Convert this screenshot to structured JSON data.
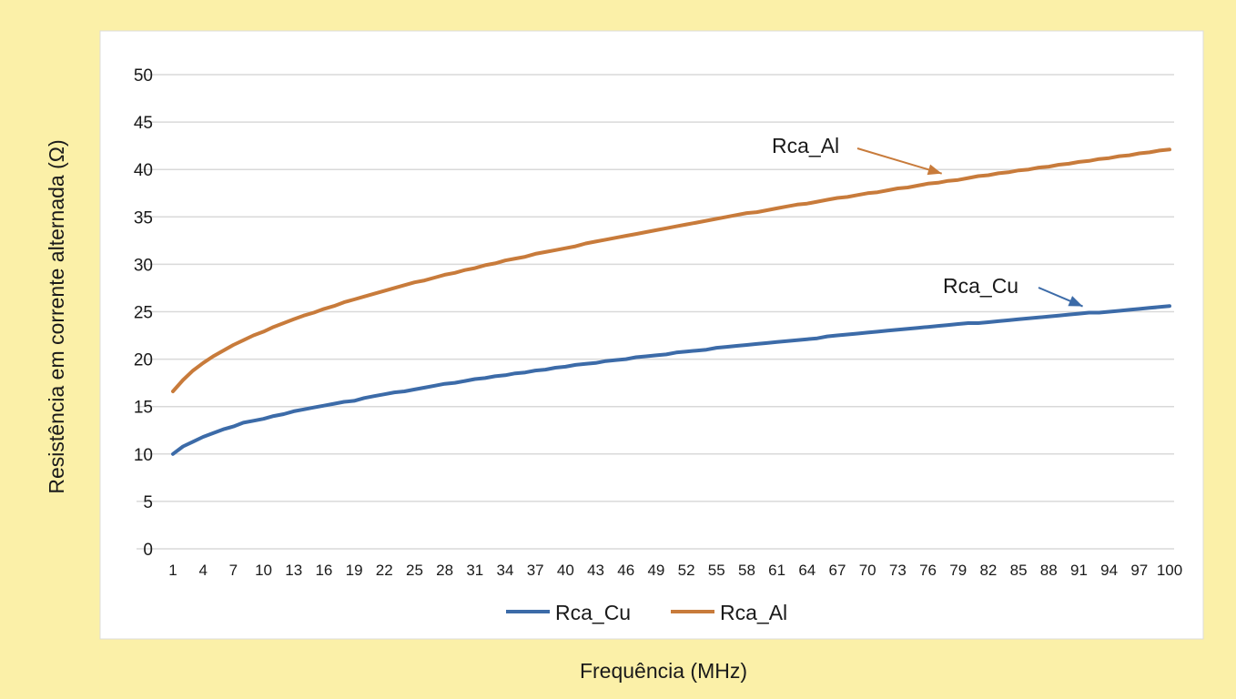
{
  "chart_data": {
    "type": "line",
    "title": "",
    "xlabel": "Frequência (MHz)",
    "ylabel": "Resistência em corrente alternada (Ω)",
    "x_start": 1,
    "x_end": 100,
    "x_tick_labels": [
      "1",
      "4",
      "7",
      "10",
      "13",
      "16",
      "19",
      "22",
      "25",
      "28",
      "31",
      "34",
      "37",
      "40",
      "43",
      "46",
      "49",
      "52",
      "55",
      "58",
      "61",
      "64",
      "67",
      "70",
      "73",
      "76",
      "79",
      "82",
      "85",
      "88",
      "91",
      "94",
      "97",
      "100"
    ],
    "ylim": [
      0,
      50
    ],
    "y_ticks": [
      0,
      5,
      10,
      15,
      20,
      25,
      30,
      35,
      40,
      45,
      50
    ],
    "grid": true,
    "legend_position": "bottom",
    "series": [
      {
        "name": "Rca_Cu",
        "color": "#3c6ba8",
        "values": [
          10.0,
          10.8,
          11.3,
          11.8,
          12.2,
          12.6,
          12.9,
          13.3,
          13.5,
          13.7,
          14.0,
          14.2,
          14.5,
          14.7,
          14.9,
          15.1,
          15.3,
          15.5,
          15.6,
          15.9,
          16.1,
          16.3,
          16.5,
          16.6,
          16.8,
          17.0,
          17.2,
          17.4,
          17.5,
          17.7,
          17.9,
          18.0,
          18.2,
          18.3,
          18.5,
          18.6,
          18.8,
          18.9,
          19.1,
          19.2,
          19.4,
          19.5,
          19.6,
          19.8,
          19.9,
          20.0,
          20.2,
          20.3,
          20.4,
          20.5,
          20.7,
          20.8,
          20.9,
          21.0,
          21.2,
          21.3,
          21.4,
          21.5,
          21.6,
          21.7,
          21.8,
          21.9,
          22.0,
          22.1,
          22.2,
          22.4,
          22.5,
          22.6,
          22.7,
          22.8,
          22.9,
          23.0,
          23.1,
          23.2,
          23.3,
          23.4,
          23.5,
          23.6,
          23.7,
          23.8,
          23.8,
          23.9,
          24.0,
          24.1,
          24.2,
          24.3,
          24.4,
          24.5,
          24.6,
          24.7,
          24.8,
          24.9,
          24.9,
          25.0,
          25.1,
          25.2,
          25.3,
          25.4,
          25.5,
          25.6
        ]
      },
      {
        "name": "Rca_Al",
        "color": "#c87b3b",
        "values": [
          16.6,
          17.8,
          18.8,
          19.6,
          20.3,
          20.9,
          21.5,
          22.0,
          22.5,
          22.9,
          23.4,
          23.8,
          24.2,
          24.6,
          24.9,
          25.3,
          25.6,
          26.0,
          26.3,
          26.6,
          26.9,
          27.2,
          27.5,
          27.8,
          28.1,
          28.3,
          28.6,
          28.9,
          29.1,
          29.4,
          29.6,
          29.9,
          30.1,
          30.4,
          30.6,
          30.8,
          31.1,
          31.3,
          31.5,
          31.7,
          31.9,
          32.2,
          32.4,
          32.6,
          32.8,
          33.0,
          33.2,
          33.4,
          33.6,
          33.8,
          34.0,
          34.2,
          34.4,
          34.6,
          34.8,
          35.0,
          35.2,
          35.4,
          35.5,
          35.7,
          35.9,
          36.1,
          36.3,
          36.4,
          36.6,
          36.8,
          37.0,
          37.1,
          37.3,
          37.5,
          37.6,
          37.8,
          38.0,
          38.1,
          38.3,
          38.5,
          38.6,
          38.8,
          38.9,
          39.1,
          39.3,
          39.4,
          39.6,
          39.7,
          39.9,
          40.0,
          40.2,
          40.3,
          40.5,
          40.6,
          40.8,
          40.9,
          41.1,
          41.2,
          41.4,
          41.5,
          41.7,
          41.8,
          42.0,
          42.1
        ]
      }
    ],
    "annotations": [
      {
        "text": "Rca_Al",
        "series": "Rca_Al",
        "points_to_x": 79
      },
      {
        "text": "Rca_Cu",
        "series": "Rca_Cu",
        "points_to_x": 93
      }
    ],
    "colors": {
      "background": "#fbf0a8",
      "plot_background": "#ffffff",
      "grid": "#d9d9d9",
      "text": "#1a1a1a"
    }
  }
}
